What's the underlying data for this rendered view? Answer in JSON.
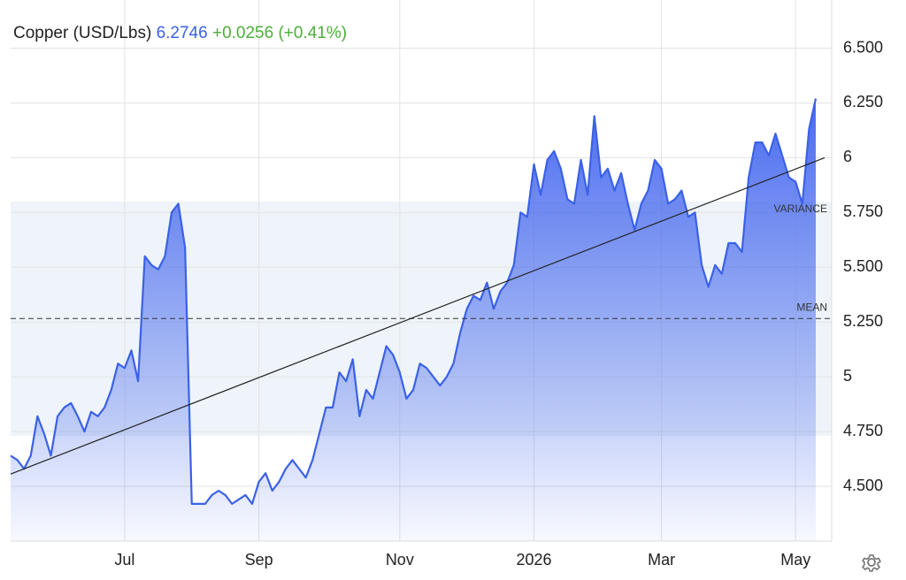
{
  "chart_data": {
    "type": "area",
    "title": "Copper (USD/Lbs)",
    "price": 6.2746,
    "change": "+0.0256 (+0.41%)",
    "categories": [
      null,
      null,
      null,
      null,
      null,
      null,
      null,
      null,
      null,
      null,
      null,
      null,
      null,
      null,
      null,
      null,
      null,
      "Jul",
      null,
      null,
      null,
      null,
      null,
      null,
      null,
      null,
      null,
      null,
      null,
      null,
      null,
      null,
      null,
      null,
      null,
      null,
      null,
      "Sep",
      null,
      null,
      null,
      null,
      null,
      null,
      null,
      null,
      null,
      null,
      null,
      null,
      null,
      null,
      null,
      null,
      null,
      null,
      null,
      null,
      "Nov",
      null,
      null,
      null,
      null,
      null,
      null,
      null,
      null,
      null,
      null,
      null,
      null,
      null,
      null,
      null,
      null,
      null,
      null,
      null,
      "2026",
      null,
      null,
      null,
      null,
      null,
      null,
      null,
      null,
      null,
      null,
      null,
      null,
      null,
      null,
      null,
      null,
      null,
      null,
      "Mar",
      null,
      null,
      null,
      null,
      null,
      null,
      null,
      null,
      null,
      null,
      null,
      null,
      null,
      null,
      null,
      null,
      null,
      null,
      null,
      "May",
      null,
      null,
      null
    ],
    "values": [
      4.64,
      4.62,
      4.58,
      4.64,
      4.82,
      4.74,
      4.64,
      4.82,
      4.86,
      4.88,
      4.82,
      4.75,
      4.84,
      4.82,
      4.86,
      4.94,
      5.06,
      5.04,
      5.12,
      4.98,
      5.55,
      5.51,
      5.49,
      5.55,
      5.75,
      5.79,
      5.59,
      4.42,
      4.42,
      4.42,
      4.46,
      4.48,
      4.46,
      4.42,
      4.44,
      4.46,
      4.42,
      4.52,
      4.56,
      4.48,
      4.52,
      4.58,
      4.62,
      4.58,
      4.54,
      4.62,
      4.74,
      4.86,
      4.86,
      5.02,
      4.98,
      5.08,
      4.82,
      4.94,
      4.9,
      5.02,
      5.14,
      5.1,
      5.02,
      4.9,
      4.94,
      5.06,
      5.04,
      5.0,
      4.96,
      5.0,
      5.06,
      5.2,
      5.31,
      5.37,
      5.35,
      5.43,
      5.31,
      5.39,
      5.43,
      5.51,
      5.75,
      5.73,
      5.97,
      5.83,
      5.99,
      6.03,
      5.95,
      5.81,
      5.79,
      5.99,
      5.83,
      6.19,
      5.91,
      5.95,
      5.85,
      5.93,
      5.79,
      5.67,
      5.79,
      5.85,
      5.99,
      5.95,
      5.79,
      5.81,
      5.85,
      5.73,
      5.75,
      5.51,
      5.41,
      5.51,
      5.47,
      5.61,
      5.61,
      5.57,
      5.91,
      6.07,
      6.07,
      6.01,
      6.11,
      6.01,
      5.91,
      5.89,
      5.79,
      6.13,
      6.27
    ],
    "color": "#3b61e6",
    "ylim": [
      4.25,
      6.72
    ],
    "yticks": [
      {
        "value": 6.5,
        "label": "6.500"
      },
      {
        "value": 6.25,
        "label": "6.250"
      },
      6,
      {
        "value": 5.75,
        "label": "5.750"
      },
      {
        "value": 5.5,
        "label": "5.500"
      },
      {
        "value": 5.25,
        "label": "5.250"
      },
      5,
      {
        "value": 4.75,
        "label": "4.750"
      },
      {
        "value": 4.5,
        "label": "4.500"
      }
    ],
    "grid": true,
    "mean": {
      "label": "MEAN",
      "value": 5.266
    },
    "variance": {
      "label": "VARIANCE",
      "low": 4.73,
      "high": 5.8
    },
    "trend": {
      "start": 4.556,
      "end": 6.0
    }
  }
}
